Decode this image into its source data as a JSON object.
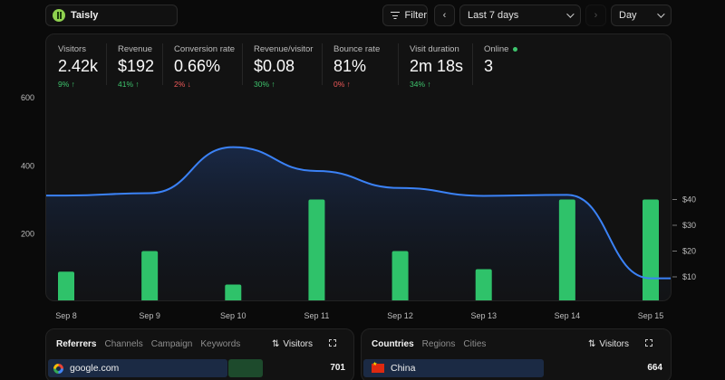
{
  "site": {
    "name": "Taisly"
  },
  "toolbar": {
    "filter_label": "Filter",
    "date_range": "Last 7 days",
    "granularity": "Day"
  },
  "metrics": [
    {
      "label": "Visitors",
      "value": "2.42k",
      "change": "9%",
      "direction": "up"
    },
    {
      "label": "Revenue",
      "value": "$192",
      "change": "41%",
      "direction": "up"
    },
    {
      "label": "Conversion rate",
      "value": "0.66%",
      "change": "2%",
      "direction": "down"
    },
    {
      "label": "Revenue/visitor",
      "value": "$0.08",
      "change": "30%",
      "direction": "up"
    },
    {
      "label": "Bounce rate",
      "value": "81%",
      "change": "0%",
      "direction": "down"
    },
    {
      "label": "Visit duration",
      "value": "2m 18s",
      "change": "34%",
      "direction": "up"
    },
    {
      "label": "Online",
      "value": "3",
      "change": "",
      "direction": "none"
    }
  ],
  "colors": {
    "line": "#3b82f6",
    "bar": "#2fc26a",
    "up": "#3ec46d",
    "down": "#f15a5a"
  },
  "chart_data": {
    "type": "line",
    "categories": [
      "Sep 8",
      "Sep 9",
      "Sep 10",
      "Sep 11",
      "Sep 12",
      "Sep 13",
      "Sep 14",
      "Sep 15"
    ],
    "series": [
      {
        "name": "Visitors",
        "type": "line",
        "axis": "left",
        "values": [
          313,
          320,
          455,
          385,
          335,
          312,
          315,
          70
        ]
      },
      {
        "name": "Revenue",
        "type": "bar",
        "axis": "right",
        "values": [
          12,
          20,
          7,
          40,
          20,
          13,
          40,
          40
        ]
      }
    ],
    "y_left": {
      "ticks": [
        "200",
        "400",
        "600"
      ],
      "values": [
        200,
        400,
        600
      ]
    },
    "y_right": {
      "ticks": [
        "$10",
        "$20",
        "$30",
        "$40"
      ],
      "values": [
        10,
        20,
        30,
        40
      ]
    },
    "grid": false
  },
  "referrers": {
    "tabs": [
      "Referrers",
      "Channels",
      "Campaign",
      "Keywords"
    ],
    "sort_label": "Visitors",
    "rows": [
      {
        "label": "google.com",
        "count": "701"
      }
    ]
  },
  "countries": {
    "tabs": [
      "Countries",
      "Regions",
      "Cities"
    ],
    "sort_label": "Visitors",
    "rows": [
      {
        "label": "China",
        "count": "664"
      }
    ]
  }
}
